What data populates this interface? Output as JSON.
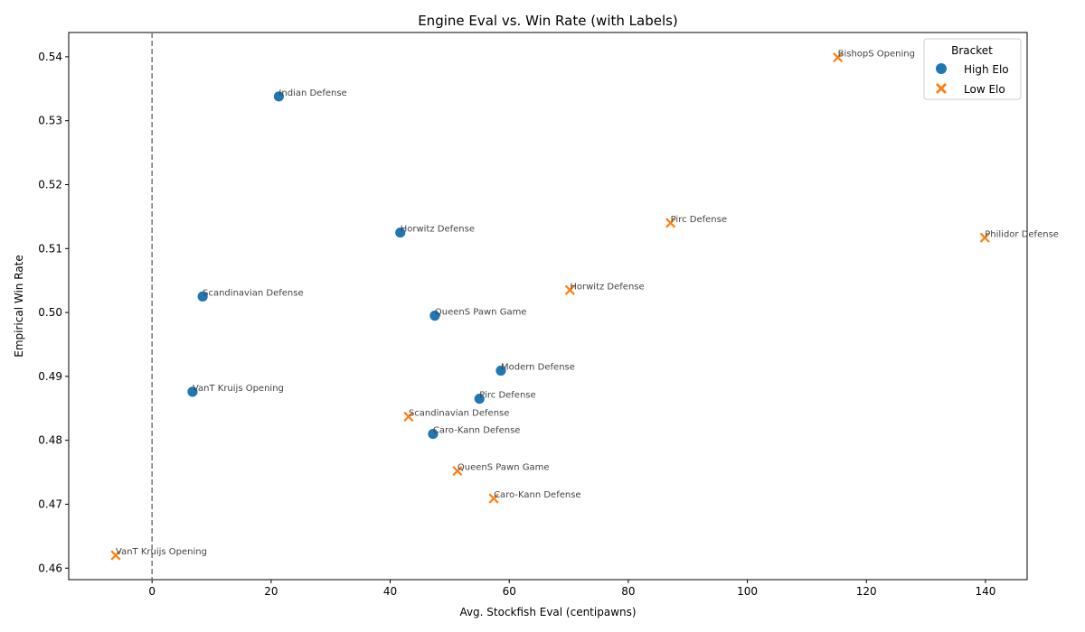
{
  "chart_data": {
    "type": "scatter",
    "title": "Engine Eval vs. Win Rate (with Labels)",
    "xlabel": "Avg. Stockfish Eval (centipawns)",
    "ylabel": "Empirical Win Rate",
    "xlim": [
      -14,
      147
    ],
    "ylim": [
      0.4582,
      0.5438
    ],
    "xticks": [
      0,
      20,
      40,
      60,
      80,
      100,
      120,
      140
    ],
    "yticks": [
      0.46,
      0.47,
      0.48,
      0.49,
      0.5,
      0.51,
      0.52,
      0.53,
      0.54
    ],
    "grid": false,
    "reference_line": {
      "x": 0,
      "style": "dashed",
      "color": "#808080"
    },
    "legend": {
      "title": "Bracket",
      "placement": "top-right",
      "entries": [
        {
          "label": "High Elo",
          "marker": "circle",
          "color": "#1f77b4"
        },
        {
          "label": "Low Elo",
          "marker": "x",
          "color": "#ff7f0e"
        }
      ]
    },
    "series": [
      {
        "name": "High Elo",
        "marker": "circle",
        "color": "#1f77b4",
        "points": [
          {
            "x": 21.3,
            "y": 0.5338,
            "label": "Indian Defense"
          },
          {
            "x": 41.7,
            "y": 0.5125,
            "label": "Horwitz Defense"
          },
          {
            "x": 8.5,
            "y": 0.5025,
            "label": "Scandinavian Defense"
          },
          {
            "x": 47.5,
            "y": 0.4995,
            "label": "QueenS Pawn Game"
          },
          {
            "x": 58.6,
            "y": 0.4909,
            "label": "Modern Defense"
          },
          {
            "x": 6.8,
            "y": 0.4876,
            "label": "VanT Kruijs Opening"
          },
          {
            "x": 55.0,
            "y": 0.4865,
            "label": "Pirc Defense"
          },
          {
            "x": 47.2,
            "y": 0.481,
            "label": "Caro-Kann Defense"
          }
        ]
      },
      {
        "name": "Low Elo",
        "marker": "x",
        "color": "#ff7f0e",
        "points": [
          {
            "x": 115.2,
            "y": 0.5399,
            "label": "BishopS Opening"
          },
          {
            "x": 87.1,
            "y": 0.514,
            "label": "Pirc Defense"
          },
          {
            "x": 139.9,
            "y": 0.5117,
            "label": "Philidor Defense"
          },
          {
            "x": 70.2,
            "y": 0.5035,
            "label": "Horwitz Defense"
          },
          {
            "x": 43.1,
            "y": 0.4837,
            "label": "Scandinavian Defense"
          },
          {
            "x": 51.3,
            "y": 0.4752,
            "label": "QueenS Pawn Game"
          },
          {
            "x": 57.4,
            "y": 0.4709,
            "label": "Caro-Kann Defense"
          },
          {
            "x": -6.1,
            "y": 0.462,
            "label": "VanT Kruijs Opening"
          }
        ]
      }
    ]
  }
}
